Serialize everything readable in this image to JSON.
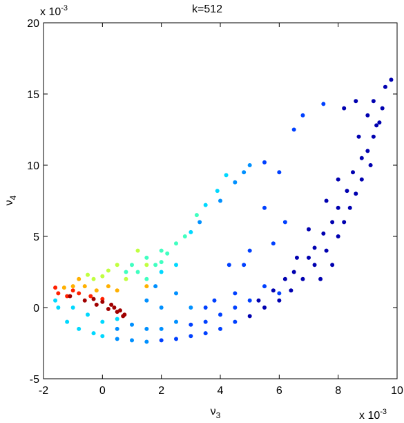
{
  "chart_data": {
    "type": "scatter",
    "title": "k=512",
    "xlabel": {
      "text": "ν",
      "sub": "3"
    },
    "ylabel": {
      "text": "ν",
      "sub": "4"
    },
    "x_multiplier": {
      "base": "x 10",
      "exponent": "-3"
    },
    "y_multiplier": {
      "base": "x 10",
      "exponent": "-3"
    },
    "xlim": [
      -2,
      10
    ],
    "xticks": [
      -2,
      0,
      2,
      4,
      6,
      8,
      10
    ],
    "ylim": [
      -5,
      20
    ],
    "yticks": [
      -5,
      0,
      5,
      10,
      15,
      20
    ],
    "grid": false,
    "series": [
      {
        "color": "#0000b0",
        "x": [
          9.8,
          9.6,
          9.5,
          9.4,
          9.2,
          9.0,
          9.1,
          8.8,
          8.6,
          8.4,
          8.2,
          8.0,
          7.6,
          7.2,
          6.8,
          6.4,
          6.0,
          8.8,
          8.5,
          8.3,
          8.0,
          7.8,
          7.5,
          7.2,
          7.0,
          6.5,
          9.3,
          9.0,
          8.7,
          9.2,
          8.0,
          7.6,
          7.0,
          6.6,
          6.2,
          5.8,
          8.6,
          8.2,
          7.8,
          7.4,
          5.5,
          5.0,
          5.3
        ],
        "y": [
          16,
          15.5,
          14,
          13,
          12,
          11,
          10,
          9,
          8,
          7,
          6,
          5,
          4,
          3,
          2,
          1.2,
          0.5,
          10.5,
          9.5,
          8.2,
          7,
          6,
          5.2,
          4.2,
          3.5,
          2.5,
          12.8,
          13.5,
          12,
          14.5,
          9,
          7.5,
          5.5,
          3.5,
          2,
          1.2,
          14.5,
          14,
          3,
          2,
          0,
          -0.6,
          0.5
        ]
      },
      {
        "color": "#0040ff",
        "x": [
          4.5,
          4.0,
          3.5,
          3.0,
          2.5,
          2.0,
          4.5,
          4.0,
          3.5,
          3.0,
          5.0,
          4.5,
          3.8,
          6.0,
          5.5,
          6.5,
          6.0,
          6.2,
          5.5,
          5.0,
          4.3,
          6.8,
          7.5,
          5.5,
          4.8,
          3.5,
          5.8
        ],
        "y": [
          -1,
          -1.5,
          -1.8,
          -2,
          -2.2,
          -2.3,
          0,
          -0.5,
          -1,
          -1.2,
          0.5,
          1,
          0.5,
          1,
          1.5,
          12.5,
          9.5,
          6,
          7,
          4,
          3,
          13.5,
          14.3,
          10.2,
          3,
          0,
          4.5
        ]
      },
      {
        "color": "#0090ff",
        "x": [
          1.5,
          1.0,
          0.5,
          1.5,
          2.0,
          2.5,
          1.0,
          2.0,
          1.5,
          3.0,
          2.5,
          1.8,
          0.5,
          4.8,
          4.5,
          5.0,
          4.0,
          3.3
        ],
        "y": [
          -2.4,
          -2.3,
          -2.2,
          -1.5,
          -1.5,
          -1,
          -1.2,
          0,
          0.5,
          0,
          1,
          1.5,
          -1.5,
          9.5,
          8.8,
          10,
          7.5,
          6
        ]
      },
      {
        "color": "#00d8ff",
        "x": [
          -1.2,
          -0.8,
          -0.3,
          0.0,
          -1.5,
          -1.0,
          -0.5,
          0.0,
          0.5,
          -1.6,
          3.5,
          3.9,
          4.2,
          3.0,
          2.5,
          2.0
        ],
        "y": [
          -1,
          -1.5,
          -1.8,
          -2,
          0,
          0,
          -0.5,
          -1,
          -0.8,
          0.5,
          7.2,
          8.2,
          9.3,
          5.3,
          3,
          2.5
        ]
      },
      {
        "color": "#40ffc0",
        "x": [
          2.5,
          2.2,
          2.0,
          1.8,
          1.5,
          1.0,
          1.2,
          2.8,
          3.2,
          0.8,
          1.5,
          2.0
        ],
        "y": [
          4.5,
          3.8,
          4,
          3,
          3.5,
          3,
          2.5,
          5,
          6.5,
          2.5,
          2,
          3.2
        ]
      },
      {
        "color": "#c0ff40",
        "x": [
          0.5,
          0.2,
          0.0,
          -0.3,
          -0.5,
          0.8,
          1.2,
          1.5
        ],
        "y": [
          3,
          2.6,
          2.2,
          2,
          2.3,
          2,
          4,
          3
        ]
      },
      {
        "color": "#ffb000",
        "x": [
          -0.6,
          -0.2,
          0.2,
          -1.0,
          -1.3,
          0.5,
          1.5,
          -0.8
        ],
        "y": [
          1.5,
          1.2,
          1.5,
          1.5,
          1.4,
          1.2,
          1.5,
          2
        ]
      },
      {
        "color": "#ff2000",
        "x": [
          -1.5,
          -1.2,
          -0.8,
          -0.4,
          0.0,
          -1.6,
          -1.0
        ],
        "y": [
          1,
          0.8,
          1,
          0.8,
          0.6,
          1.4,
          1.2
        ]
      },
      {
        "color": "#a00000",
        "x": [
          -1.1,
          -0.6,
          -0.2,
          0.2,
          0.5,
          0.7,
          0.6,
          0.3,
          -0.3,
          0.0,
          0.4,
          0.75
        ],
        "y": [
          0.8,
          0.5,
          0.2,
          -0.1,
          -0.3,
          -0.6,
          -0.2,
          0.2,
          0.6,
          0.4,
          0,
          -0.5
        ]
      }
    ]
  }
}
